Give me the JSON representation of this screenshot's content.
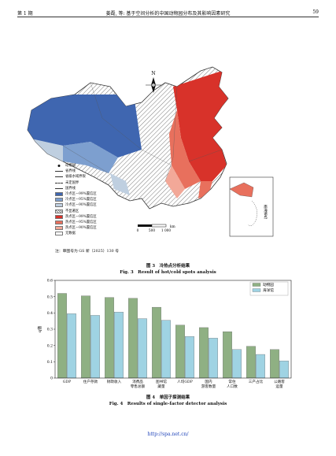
{
  "header": {
    "left": "第 1 期",
    "center": "姜磊, 等: 基于空间分析的中国动物园分布及其影响因素研究",
    "right": "59"
  },
  "map": {
    "north_label": "N",
    "scalebar": {
      "ticks": [
        "0",
        "500",
        "1 000"
      ],
      "unit": "km"
    },
    "inset_label": "南海诸岛",
    "legend": [
      {
        "label": "动物园",
        "icon": "dot-icon"
      },
      {
        "label": "省界线",
        "icon": "line-icon"
      },
      {
        "label": "省级水域界限",
        "icon": "line-icon"
      },
      {
        "label": "未定国界",
        "icon": "dash-line-icon"
      },
      {
        "label": "国界线",
        "icon": "line-icon"
      },
      {
        "label": "冷点区—99%置信区",
        "color": "#3f66b0"
      },
      {
        "label": "冷点区—95%置信区",
        "color": "#7d9fcf"
      },
      {
        "label": "冷点区—90%置信区",
        "color": "#bfcfe0"
      },
      {
        "label": "不显著区",
        "icon": "hatch-icon"
      },
      {
        "label": "热点区—99%置信区",
        "color": "#d8322a"
      },
      {
        "label": "热点区—95%置信区",
        "color": "#e8705d"
      },
      {
        "label": "热点区—90%置信区",
        "color": "#f2a898"
      },
      {
        "label": "无数据",
        "color": "#ffffff"
      }
    ],
    "note": "注：审图号为 GS 新（2025）130 号",
    "colors": {
      "cold99": "#3f66b0",
      "cold95": "#7d9fcf",
      "cold90": "#bfcfe0",
      "hot99": "#d8322a",
      "hot95": "#e8705d",
      "hot90": "#f2a898",
      "neutral": "#d9d9d9"
    }
  },
  "fig3": {
    "caption_cn": "图 3　冷热点分析结果",
    "caption_en": "Fig. 3　Result of hot/cold spots analysis"
  },
  "chart_data": {
    "type": "bar",
    "ylabel": "q值",
    "ylim": [
      0,
      0.6
    ],
    "yticks": [
      "0",
      "0.1",
      "0.2",
      "0.3",
      "0.4",
      "0.5",
      "0.6"
    ],
    "legend_position": "top-right",
    "grid": false,
    "categories": [
      "GDP",
      "住户存款",
      "财政收入",
      "消费品零售总额",
      "图书馆藏量",
      "人均GDP",
      "国内游客数量",
      "常住人口数",
      "三产占比",
      "公路客运量"
    ],
    "category_lines": [
      [
        "GDP"
      ],
      [
        "住户存款"
      ],
      [
        "财政收入"
      ],
      [
        "消费品",
        "零售总额"
      ],
      [
        "图书馆",
        "藏量"
      ],
      [
        "人均GDP"
      ],
      [
        "国内",
        "游客数量"
      ],
      [
        "常住",
        "人口数"
      ],
      [
        "三产占比"
      ],
      [
        "公路客",
        "运量"
      ]
    ],
    "series": [
      {
        "name": "动物园",
        "color": "#8fb083",
        "values": [
          0.52,
          0.505,
          0.495,
          0.49,
          0.435,
          0.325,
          0.31,
          0.285,
          0.195,
          0.175
        ]
      },
      {
        "name": "海洋馆",
        "color": "#9fd3e3",
        "values": [
          0.395,
          0.385,
          0.405,
          0.365,
          0.355,
          0.255,
          0.245,
          0.175,
          0.145,
          0.105
        ]
      }
    ]
  },
  "fig4": {
    "caption_cn": "图 4　单因子探测结果",
    "caption_en": "Fig. 4　Results of single-factor detector analysis"
  },
  "footer": {
    "url": "http://spa.net.cn/"
  }
}
